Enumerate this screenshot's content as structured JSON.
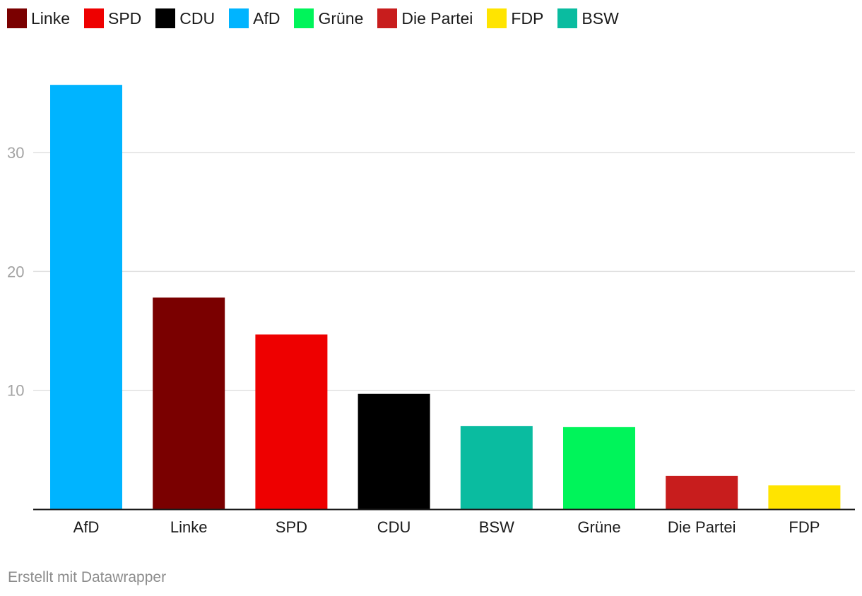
{
  "legend": [
    {
      "name": "Linke",
      "color": "#7a0000"
    },
    {
      "name": "SPD",
      "color": "#ee0000"
    },
    {
      "name": "CDU",
      "color": "#000000"
    },
    {
      "name": "AfD",
      "color": "#00b4ff"
    },
    {
      "name": "Grüne",
      "color": "#00f45a"
    },
    {
      "name": "Die Partei",
      "color": "#c81d1d"
    },
    {
      "name": "FDP",
      "color": "#ffe400"
    },
    {
      "name": "BSW",
      "color": "#0abca0"
    }
  ],
  "chart_data": {
    "type": "bar",
    "categories": [
      "AfD",
      "Linke",
      "SPD",
      "CDU",
      "BSW",
      "Grüne",
      "Die Partei",
      "FDP"
    ],
    "values": [
      35.7,
      17.8,
      14.7,
      9.7,
      7.0,
      6.9,
      2.8,
      2.0
    ],
    "colors": [
      "#00b4ff",
      "#7a0000",
      "#ee0000",
      "#000000",
      "#0abca0",
      "#00f45a",
      "#c81d1d",
      "#ffe400"
    ],
    "yticks": [
      10,
      20,
      30
    ],
    "ylim": [
      0,
      36
    ],
    "grid": true,
    "legend_position": "top-left",
    "title": "",
    "xlabel": "",
    "ylabel": ""
  },
  "footer": {
    "credit": "Erstellt mit Datawrapper"
  }
}
